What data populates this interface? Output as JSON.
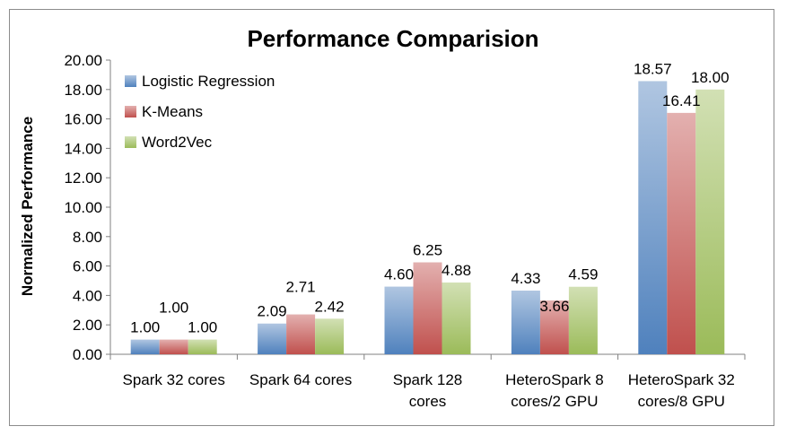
{
  "chart_data": {
    "type": "bar",
    "title": "Performance Comparision",
    "xlabel": "",
    "ylabel": "Normalized Performance",
    "ylim": [
      0,
      20
    ],
    "yticks": [
      "0.00",
      "2.00",
      "4.00",
      "6.00",
      "8.00",
      "10.00",
      "12.00",
      "14.00",
      "16.00",
      "18.00",
      "20.00"
    ],
    "categories": [
      [
        "Spark 32 cores"
      ],
      [
        "Spark 64 cores"
      ],
      [
        "Spark 128",
        "cores"
      ],
      [
        "HeteroSpark 8",
        "cores/2 GPU"
      ],
      [
        "HeteroSpark 32",
        "cores/8 GPU"
      ]
    ],
    "series": [
      {
        "name": "Logistic Regression",
        "color": "#4f81bd",
        "values": [
          1.0,
          2.09,
          4.6,
          4.33,
          18.57
        ],
        "labels": [
          "1.00",
          "2.09",
          "4.60",
          "4.33",
          "18.57"
        ]
      },
      {
        "name": "K-Means",
        "color": "#c0504d",
        "values": [
          1.0,
          2.71,
          6.25,
          3.66,
          16.41
        ],
        "labels": [
          "1.00",
          "2.71",
          "6.25",
          "3.66",
          "16.41"
        ]
      },
      {
        "name": "Word2Vec",
        "color": "#9bbb59",
        "values": [
          1.0,
          2.42,
          4.88,
          4.59,
          18.0
        ],
        "labels": [
          "1.00",
          "2.42",
          "4.88",
          "4.59",
          "18.00"
        ]
      }
    ],
    "grid": false,
    "legend_position": "top-left"
  }
}
